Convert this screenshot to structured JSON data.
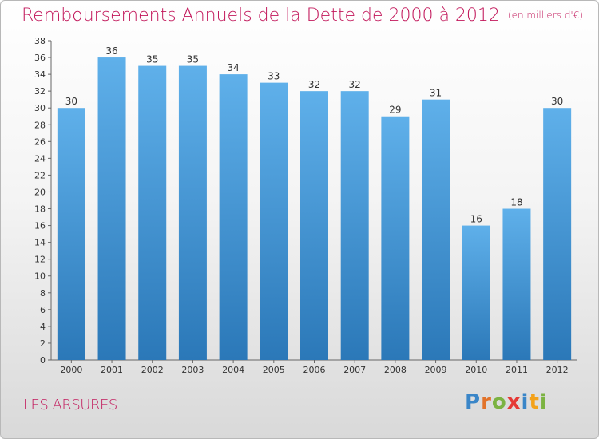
{
  "colors": {
    "title": "#c2185b",
    "bar_top": "#5fb0ea",
    "bar_bottom": "#2b78b8",
    "axis": "#666666"
  },
  "chart_data": {
    "type": "bar",
    "title": "Remboursements Annuels de la Dette de 2000 à 2012",
    "unit": "(en milliers d'€)",
    "categories": [
      "2000",
      "2001",
      "2002",
      "2003",
      "2004",
      "2005",
      "2006",
      "2007",
      "2008",
      "2009",
      "2010",
      "2011",
      "2012"
    ],
    "values": [
      30,
      36,
      35,
      35,
      34,
      33,
      32,
      32,
      29,
      31,
      16,
      18,
      30
    ],
    "ylim": [
      0,
      38
    ],
    "ystep": 2,
    "xlabel": "",
    "ylabel": "",
    "grid": false
  },
  "footer": {
    "commune": "LES ARSURES",
    "logo_letters": [
      {
        "char": "P",
        "color": "#3a86c8"
      },
      {
        "char": "r",
        "color": "#e2732a"
      },
      {
        "char": "o",
        "color": "#7cb342"
      },
      {
        "char": "x",
        "color": "#e53935"
      },
      {
        "char": "i",
        "color": "#3a86c8"
      },
      {
        "char": "t",
        "color": "#f3a21b"
      },
      {
        "char": "i",
        "color": "#7cb342"
      }
    ]
  }
}
